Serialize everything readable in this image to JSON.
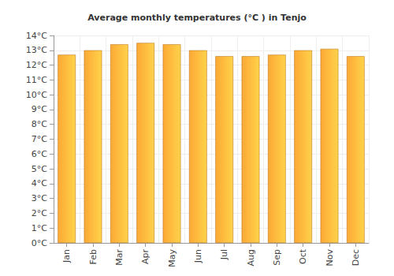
{
  "chart_data": {
    "type": "bar",
    "title": "Average monthly temperatures (°C ) in Tenjo",
    "categories": [
      "Jan",
      "Feb",
      "Mar",
      "Apr",
      "May",
      "Jun",
      "Jul",
      "Aug",
      "Sep",
      "Oct",
      "Nov",
      "Dec"
    ],
    "values": [
      12.7,
      13.0,
      13.4,
      13.5,
      13.4,
      13.0,
      12.6,
      12.6,
      12.7,
      13.0,
      13.1,
      12.6
    ],
    "color": "#fca935",
    "ylim": [
      0,
      14
    ],
    "yticks": [
      {
        "value": 0,
        "label": "0°C"
      },
      {
        "value": 1,
        "label": "1°C"
      },
      {
        "value": 2,
        "label": "2°C"
      },
      {
        "value": 3,
        "label": "3°C"
      },
      {
        "value": 4,
        "label": "4°C"
      },
      {
        "value": 5,
        "label": "5°C"
      },
      {
        "value": 6,
        "label": "6°C"
      },
      {
        "value": 7,
        "label": "7°C"
      },
      {
        "value": 8,
        "label": "8°C"
      },
      {
        "value": 9,
        "label": "9°C"
      },
      {
        "value": 10,
        "label": "10°C"
      },
      {
        "value": 11,
        "label": "11°C"
      },
      {
        "value": 12,
        "label": "12°C"
      },
      {
        "value": 13,
        "label": "13°C"
      },
      {
        "value": 14,
        "label": "14°C"
      }
    ],
    "grid": true
  }
}
